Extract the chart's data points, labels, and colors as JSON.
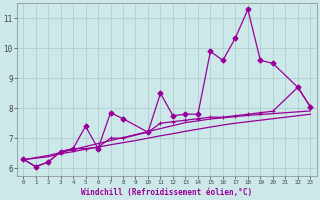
{
  "xlabel": "Windchill (Refroidissement éolien,°C)",
  "x": [
    0,
    1,
    2,
    3,
    4,
    5,
    6,
    7,
    8,
    9,
    10,
    11,
    12,
    13,
    14,
    15,
    16,
    17,
    18,
    19,
    20,
    21,
    22,
    23
  ],
  "line1": [
    6.3,
    6.05,
    6.2,
    6.55,
    6.65,
    7.4,
    6.65,
    7.85,
    7.65,
    7.2,
    8.5,
    7.75,
    7.8,
    7.8,
    9.9,
    9.6,
    10.35,
    11.3,
    9.6,
    9.5,
    8.7,
    8.05
  ],
  "line1_x": [
    0,
    1,
    2,
    3,
    4,
    5,
    6,
    7,
    8,
    10,
    11,
    12,
    13,
    14,
    15,
    16,
    17,
    18,
    19,
    20,
    22,
    23
  ],
  "line2": [
    6.3,
    6.05,
    6.2,
    6.55,
    6.65,
    6.65,
    6.7,
    7.0,
    7.0,
    7.2,
    7.5,
    7.55,
    7.6,
    7.65,
    7.7,
    7.7,
    7.75,
    7.8,
    7.85,
    7.9,
    8.7,
    8.05
  ],
  "line2_x": [
    0,
    1,
    2,
    3,
    4,
    5,
    6,
    7,
    8,
    10,
    11,
    12,
    13,
    14,
    15,
    16,
    17,
    18,
    19,
    20,
    22,
    23
  ],
  "line3": [
    6.28,
    6.35,
    6.42,
    6.52,
    6.62,
    6.72,
    6.82,
    6.92,
    7.02,
    7.12,
    7.22,
    7.32,
    7.42,
    7.52,
    7.58,
    7.64,
    7.68,
    7.72,
    7.76,
    7.79,
    7.82,
    7.85,
    7.88,
    7.91
  ],
  "line4": [
    6.28,
    6.33,
    6.38,
    6.48,
    6.55,
    6.63,
    6.7,
    6.78,
    6.85,
    6.92,
    7.0,
    7.08,
    7.15,
    7.23,
    7.3,
    7.37,
    7.44,
    7.5,
    7.55,
    7.6,
    7.65,
    7.7,
    7.75,
    7.8
  ],
  "color": "#990099",
  "bg_color": "#cce8e8",
  "grid_color": "#aacccc",
  "ylim": [
    5.75,
    11.5
  ],
  "xlim": [
    -0.5,
    23.5
  ],
  "yticks": [
    6,
    7,
    8,
    9,
    10,
    11
  ]
}
